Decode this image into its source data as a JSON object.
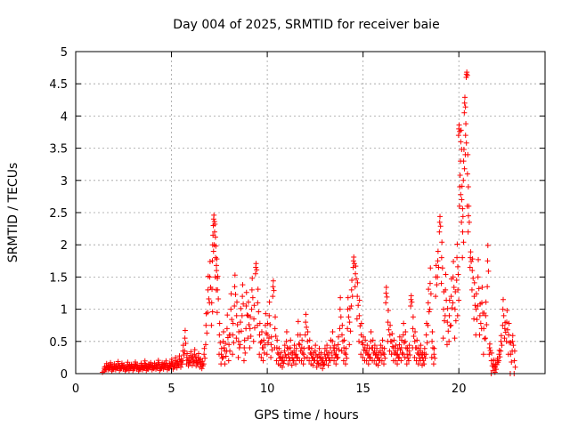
{
  "chart_data": {
    "type": "scatter",
    "title": "Day 004 of 2025, SRMTID for receiver baie",
    "xlabel": "GPS time / hours",
    "ylabel": "SRMTID / TECUs",
    "xlim": [
      0,
      24.5
    ],
    "ylim": [
      0,
      5
    ],
    "xticks": [
      0,
      5,
      10,
      15,
      20
    ],
    "yticks": [
      0,
      0.5,
      1,
      1.5,
      2,
      2.5,
      3,
      3.5,
      4,
      4.5,
      5
    ],
    "xtick_labels": [
      "0",
      "5",
      "10",
      "15",
      "20"
    ],
    "ytick_labels": [
      "0",
      "0.5",
      "1",
      "1.5",
      "2",
      "2.5",
      "3",
      "3.5",
      "4",
      "4.5",
      "5"
    ],
    "grid": true,
    "marker": "plus",
    "series": [
      {
        "name": "SRMTID",
        "color": "#ff0000",
        "x": [
          1.4,
          1.5,
          1.6,
          1.7,
          1.8,
          1.9,
          2.0,
          2.1,
          2.2,
          2.3,
          2.4,
          2.5,
          2.6,
          2.7,
          2.8,
          2.9,
          3.0,
          3.1,
          3.2,
          3.3,
          3.4,
          3.5,
          3.6,
          3.7,
          3.8,
          3.9,
          4.0,
          4.1,
          4.2,
          4.3,
          4.4,
          4.5,
          4.6,
          4.7,
          4.8,
          4.9,
          5.0,
          5.1,
          5.2,
          5.3,
          5.4,
          5.5,
          5.6,
          5.7,
          5.8,
          5.9,
          6.0,
          6.1,
          6.2,
          6.3,
          6.4,
          6.5,
          6.6,
          6.7,
          6.8,
          6.9,
          7.0,
          7.1,
          7.15,
          7.2,
          7.25,
          7.3,
          7.35,
          7.4,
          7.5,
          7.6,
          7.7,
          7.8,
          7.9,
          8.0,
          8.1,
          8.2,
          8.3,
          8.4,
          8.5,
          8.6,
          8.7,
          8.8,
          8.9,
          9.0,
          9.1,
          9.2,
          9.3,
          9.4,
          9.5,
          9.6,
          9.7,
          9.8,
          9.9,
          10.0,
          10.1,
          10.2,
          10.3,
          10.4,
          10.5,
          10.6,
          10.7,
          10.8,
          10.9,
          11.0,
          11.1,
          11.2,
          11.3,
          11.4,
          11.5,
          11.6,
          11.7,
          11.8,
          11.9,
          12.0,
          12.1,
          12.2,
          12.3,
          12.4,
          12.5,
          12.6,
          12.7,
          12.8,
          12.9,
          13.0,
          13.1,
          13.2,
          13.3,
          13.4,
          13.5,
          13.6,
          13.7,
          13.8,
          13.9,
          14.0,
          14.1,
          14.2,
          14.3,
          14.4,
          14.5,
          14.6,
          14.7,
          14.8,
          14.9,
          15.0,
          15.1,
          15.2,
          15.3,
          15.4,
          15.5,
          15.6,
          15.7,
          15.8,
          15.9,
          16.0,
          16.1,
          16.2,
          16.3,
          16.4,
          16.5,
          16.6,
          16.7,
          16.8,
          16.9,
          17.0,
          17.1,
          17.2,
          17.3,
          17.4,
          17.5,
          17.6,
          17.7,
          17.8,
          17.9,
          18.0,
          18.1,
          18.2,
          18.3,
          18.4,
          18.5,
          18.6,
          18.7,
          18.8,
          18.9,
          19.0,
          19.1,
          19.2,
          19.3,
          19.4,
          19.5,
          19.6,
          19.7,
          19.8,
          19.9,
          19.95,
          20.0,
          20.05,
          20.1,
          20.15,
          20.2,
          20.25,
          20.3,
          20.35,
          20.4,
          20.45,
          20.5,
          20.6,
          20.7,
          20.8,
          20.9,
          21.0,
          21.1,
          21.2,
          21.3,
          21.4,
          21.5,
          21.6,
          21.7,
          21.8,
          21.9,
          22.0,
          22.1,
          22.2,
          22.3,
          22.4,
          22.5,
          22.6,
          22.7,
          22.8,
          22.9
        ],
        "y": [
          0.02,
          0.08,
          0.12,
          0.1,
          0.14,
          0.08,
          0.12,
          0.1,
          0.15,
          0.09,
          0.13,
          0.11,
          0.08,
          0.14,
          0.1,
          0.12,
          0.09,
          0.15,
          0.11,
          0.08,
          0.13,
          0.1,
          0.16,
          0.09,
          0.12,
          0.14,
          0.1,
          0.13,
          0.11,
          0.17,
          0.09,
          0.14,
          0.12,
          0.16,
          0.1,
          0.13,
          0.18,
          0.12,
          0.2,
          0.15,
          0.22,
          0.18,
          0.35,
          0.55,
          0.25,
          0.2,
          0.28,
          0.22,
          0.3,
          0.2,
          0.25,
          0.18,
          0.15,
          0.3,
          0.75,
          1.3,
          1.5,
          1.1,
          2.0,
          2.4,
          2.2,
          1.8,
          1.6,
          1.3,
          0.6,
          0.3,
          0.5,
          0.35,
          0.7,
          0.45,
          1.0,
          0.6,
          1.35,
          0.9,
          0.5,
          0.8,
          1.2,
          0.4,
          1.05,
          0.9,
          0.7,
          1.3,
          0.85,
          1.65,
          1.1,
          0.6,
          0.5,
          0.4,
          0.75,
          0.6,
          0.9,
          0.45,
          1.35,
          0.7,
          0.4,
          0.3,
          0.25,
          0.2,
          0.35,
          0.5,
          0.3,
          0.4,
          0.25,
          0.35,
          0.3,
          0.6,
          0.45,
          0.4,
          0.3,
          0.8,
          0.5,
          0.4,
          0.3,
          0.25,
          0.35,
          0.2,
          0.3,
          0.25,
          0.18,
          0.3,
          0.35,
          0.25,
          0.4,
          0.5,
          0.35,
          0.3,
          0.45,
          1.0,
          0.6,
          0.4,
          0.3,
          1.0,
          0.8,
          1.3,
          1.75,
          1.55,
          1.2,
          0.9,
          0.6,
          0.45,
          0.4,
          0.35,
          0.3,
          0.5,
          0.4,
          0.35,
          0.3,
          0.25,
          0.35,
          0.4,
          0.3,
          1.25,
          0.8,
          0.6,
          0.5,
          0.4,
          0.35,
          0.3,
          0.45,
          0.4,
          0.6,
          0.5,
          0.3,
          0.35,
          1.15,
          0.7,
          0.5,
          0.4,
          0.3,
          0.35,
          0.25,
          0.3,
          0.6,
          1.1,
          1.4,
          0.5,
          0.3,
          1.5,
          1.75,
          2.35,
          1.8,
          1.0,
          1.3,
          0.8,
          0.9,
          1.2,
          1.5,
          1.0,
          1.8,
          1.3,
          3.8,
          2.9,
          3.6,
          2.7,
          2.2,
          3.3,
          4.2,
          3.7,
          4.65,
          3.1,
          2.45,
          1.8,
          1.6,
          1.2,
          1.0,
          1.5,
          0.9,
          1.1,
          0.7,
          0.9,
          1.75,
          0.4,
          0.2,
          0.15,
          0.1,
          0.2,
          0.3,
          0.5,
          1.0,
          0.7,
          0.8,
          0.6,
          0.3,
          0.5,
          0.2
        ],
        "jitter": [
          0.0,
          0.04,
          0.06,
          0.04,
          0.05,
          0.04,
          0.05,
          0.04,
          0.06,
          0.04,
          0.05,
          0.04,
          0.04,
          0.06,
          0.05,
          0.04,
          0.04,
          0.05,
          0.04,
          0.04,
          0.05,
          0.04,
          0.06,
          0.04,
          0.05,
          0.05,
          0.04,
          0.05,
          0.04,
          0.06,
          0.04,
          0.05,
          0.05,
          0.06,
          0.04,
          0.05,
          0.07,
          0.05,
          0.08,
          0.06,
          0.09,
          0.08,
          0.15,
          0.2,
          0.1,
          0.08,
          0.1,
          0.09,
          0.12,
          0.08,
          0.1,
          0.08,
          0.07,
          0.15,
          0.3,
          0.35,
          0.4,
          0.35,
          0.25,
          0.1,
          0.2,
          0.3,
          0.3,
          0.35,
          0.3,
          0.15,
          0.25,
          0.2,
          0.35,
          0.25,
          0.4,
          0.3,
          0.3,
          0.35,
          0.25,
          0.35,
          0.3,
          0.2,
          0.35,
          0.35,
          0.3,
          0.3,
          0.35,
          0.1,
          0.35,
          0.3,
          0.25,
          0.2,
          0.3,
          0.3,
          0.35,
          0.2,
          0.15,
          0.3,
          0.2,
          0.15,
          0.12,
          0.1,
          0.15,
          0.25,
          0.15,
          0.2,
          0.12,
          0.15,
          0.15,
          0.35,
          0.25,
          0.2,
          0.15,
          0.2,
          0.25,
          0.2,
          0.15,
          0.12,
          0.15,
          0.1,
          0.15,
          0.12,
          0.1,
          0.15,
          0.15,
          0.12,
          0.2,
          0.25,
          0.15,
          0.15,
          0.2,
          0.3,
          0.25,
          0.2,
          0.15,
          0.3,
          0.35,
          0.25,
          0.1,
          0.2,
          0.35,
          0.4,
          0.3,
          0.2,
          0.2,
          0.15,
          0.15,
          0.25,
          0.2,
          0.15,
          0.15,
          0.12,
          0.15,
          0.2,
          0.15,
          0.15,
          0.3,
          0.25,
          0.2,
          0.2,
          0.15,
          0.15,
          0.2,
          0.2,
          0.3,
          0.25,
          0.15,
          0.15,
          0.1,
          0.3,
          0.25,
          0.2,
          0.15,
          0.15,
          0.12,
          0.15,
          0.3,
          0.35,
          0.4,
          0.25,
          0.15,
          0.3,
          0.25,
          0.15,
          0.4,
          0.45,
          0.4,
          0.35,
          0.4,
          0.45,
          0.4,
          0.45,
          0.35,
          0.4,
          0.1,
          0.3,
          0.3,
          0.35,
          0.4,
          0.3,
          0.15,
          0.3,
          0.05,
          0.5,
          0.25,
          0.15,
          0.3,
          0.35,
          0.4,
          0.45,
          0.3,
          0.4,
          0.4,
          0.35,
          0.4,
          0.1,
          0.2,
          0.1,
          0.08,
          0.06,
          0.1,
          0.15,
          0.25,
          0.15,
          0.3,
          0.3,
          0.3,
          0.15,
          0.25,
          0.1
        ]
      }
    ]
  }
}
